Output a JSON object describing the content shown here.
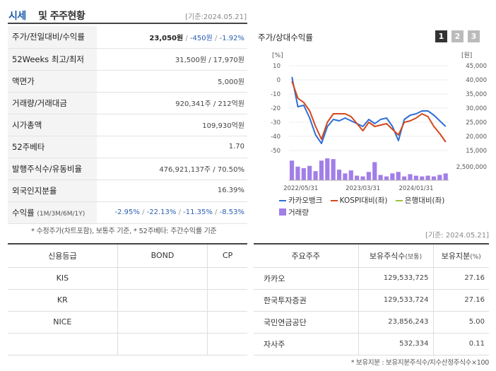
{
  "header": {
    "title_a": "시세",
    "title_b": "및 주주현황",
    "date": "[기준:2024.05.21]"
  },
  "stock_rows": [
    {
      "label": "주가/전일대비/수익률",
      "price": "23,050원",
      "change": "-450원",
      "rate": "-1.92%"
    },
    {
      "label": "52Weeks 최고/최저",
      "value": "31,500원 / 17,970원"
    },
    {
      "label": "액면가",
      "value": "5,000원"
    },
    {
      "label": "거래량/거래대금",
      "value": "920,341주 / 212억원"
    },
    {
      "label": "시가총액",
      "value": "109,930억원"
    },
    {
      "label": "52주베타",
      "value": "1.70"
    },
    {
      "label": "발행주식수/유동비율",
      "value": "476,921,137주 / 70.50%"
    },
    {
      "label": "외국인지분율",
      "value": "16.39%"
    },
    {
      "label": "수익률",
      "label_sub": "(1M/3M/6M/1Y)",
      "r1": "-2.95%",
      "r2": "-22.13%",
      "r3": "-11.35%",
      "r4": "-8.53%"
    }
  ],
  "note1": "* 수정주가(차트포함), 보통주 기준, * 52주베타: 주간수익률 기준",
  "chart": {
    "title": "주가/상대수익률",
    "tabs": [
      "1",
      "2",
      "3"
    ],
    "left_unit": "[%]",
    "right_unit": "[원]",
    "volume_tick": "2,500,000",
    "legend": {
      "s1": "카카오뱅크",
      "s2": "KOSPI대비(좌)",
      "s3": "은행대비(좌)",
      "s4": "거래량"
    }
  },
  "chart_data": {
    "type": "line",
    "x_ticks": [
      "2022/05/31",
      "2023/03/31",
      "2024/01/31"
    ],
    "left_axis": {
      "label": "[%]",
      "ticks": [
        10,
        0,
        -10,
        -20,
        -30,
        -40,
        -50
      ],
      "ylim": [
        -50,
        10
      ]
    },
    "right_axis": {
      "label": "[원]",
      "ticks": [
        "45,000",
        "40,000",
        "35,000",
        "30,000",
        "25,000",
        "20,000",
        "15,000"
      ],
      "ylim": [
        15000,
        45000
      ]
    },
    "series": [
      {
        "name": "카카오뱅크",
        "color": "#2f6fd6",
        "axis": "left",
        "values": [
          2,
          -19,
          -18,
          -27,
          -39,
          -45,
          -33,
          -28,
          -29,
          -27,
          -29,
          -31,
          -33,
          -28,
          -31,
          -28,
          -27,
          -33,
          -43,
          -28,
          -25,
          -24,
          -22,
          -22,
          -25,
          -29,
          -33
        ]
      },
      {
        "name": "KOSPI대비(좌)",
        "color": "#d4471b",
        "axis": "left",
        "values": [
          -1,
          -13,
          -16,
          -22,
          -33,
          -42,
          -30,
          -24,
          -24,
          -24,
          -26,
          -31,
          -36,
          -30,
          -33,
          -32,
          -31,
          -35,
          -39,
          -30,
          -29,
          -27,
          -24,
          -26,
          -33,
          -38,
          -44
        ]
      },
      {
        "name": "은행대비(좌)",
        "color": "#9bc33c",
        "axis": "left",
        "values": []
      }
    ],
    "volume": {
      "name": "거래량",
      "color": "#a27ee8",
      "tick": "2,500,000",
      "values": [
        2.6,
        1.8,
        1.6,
        1.9,
        1.2,
        2.6,
        2.9,
        2.8,
        1.4,
        0.9,
        1.3,
        0.6,
        0.5,
        1.1,
        2.4,
        0.7,
        0.5,
        0.9,
        1.1,
        0.5,
        0.8,
        0.6,
        0.5,
        0.6,
        0.5,
        0.7,
        0.9
      ]
    }
  },
  "date2": "[기준: 2024.05.21]",
  "credit": {
    "headers": [
      "신용등급",
      "BOND",
      "CP"
    ],
    "rows": [
      {
        "agency": "KIS",
        "bond": "",
        "cp": ""
      },
      {
        "agency": "KR",
        "bond": "",
        "cp": ""
      },
      {
        "agency": "NICE",
        "bond": "",
        "cp": ""
      },
      {
        "agency": "",
        "bond": "",
        "cp": ""
      }
    ]
  },
  "holders": {
    "headers": {
      "h1": "주요주주",
      "h2": "보유주식수",
      "h2s": "(보통)",
      "h3": "보유지분",
      "h3s": "(%)"
    },
    "rows": [
      {
        "name": "카카오",
        "shares": "129,533,725",
        "pct": "27.16"
      },
      {
        "name": "한국투자증권",
        "shares": "129,533,724",
        "pct": "27.16"
      },
      {
        "name": "국민연금공단",
        "shares": "23,856,243",
        "pct": "5.00"
      },
      {
        "name": "자사주",
        "shares": "532,334",
        "pct": "0.11"
      }
    ]
  },
  "note2": "* 보유지분 : 보유지분주식수/지수산정주식수×100"
}
